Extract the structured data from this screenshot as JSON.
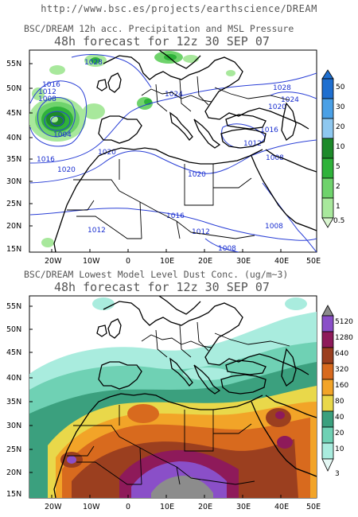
{
  "source_url": "http://www.bsc.es/projects/earthscience/DREAM",
  "panel_top": {
    "title": "BSC/DREAM 12h acc. Precipitation and MSL Pressure",
    "subtitle": "48h forecast for 12z 30 SEP 07",
    "lat_labels": [
      "55N",
      "50N",
      "45N",
      "40N",
      "35N",
      "30N",
      "25N",
      "20N",
      "15N"
    ],
    "lon_labels": [
      "20W",
      "10W",
      "0",
      "10E",
      "20E",
      "30E",
      "40E",
      "50E"
    ],
    "colorbar": {
      "labels": [
        "50",
        "30",
        "20",
        "10",
        "5",
        "2",
        "1",
        "0.5"
      ],
      "colors": [
        "#1e6fd0",
        "#4aa0e6",
        "#8ec8f0",
        "#1d8a2a",
        "#2fb23a",
        "#6fd36c",
        "#a8e89c",
        "#d9f5cf"
      ]
    },
    "isobars": [
      "1028",
      "1016",
      "1012",
      "1008",
      "1004",
      "1020",
      "1016",
      "1020",
      "1024",
      "1024",
      "1020",
      "1016",
      "1012",
      "1008",
      "1020",
      "1016",
      "1012",
      "1012",
      "1008",
      "1008",
      "1028"
    ]
  },
  "panel_bottom": {
    "title": "BSC/DREAM Lowest Model Level Dust Conc. (ug/m~3)",
    "subtitle": "48h forecast for 12z 30 SEP 07",
    "lat_labels": [
      "55N",
      "50N",
      "45N",
      "40N",
      "35N",
      "30N",
      "25N",
      "20N",
      "15N"
    ],
    "lon_labels": [
      "20W",
      "10W",
      "0",
      "10E",
      "20E",
      "30E",
      "40E",
      "50E"
    ],
    "colorbar": {
      "labels": [
        "5120",
        "1280",
        "640",
        "320",
        "160",
        "80",
        "40",
        "20",
        "10",
        "3"
      ],
      "colors": [
        "#8c8c8c",
        "#8a4fc8",
        "#8e1a5a",
        "#9b3f1f",
        "#d86a1e",
        "#f2a428",
        "#e9d84a",
        "#3ba07e",
        "#6fd1b4",
        "#a9ecde",
        "#e4f8f4"
      ]
    }
  }
}
